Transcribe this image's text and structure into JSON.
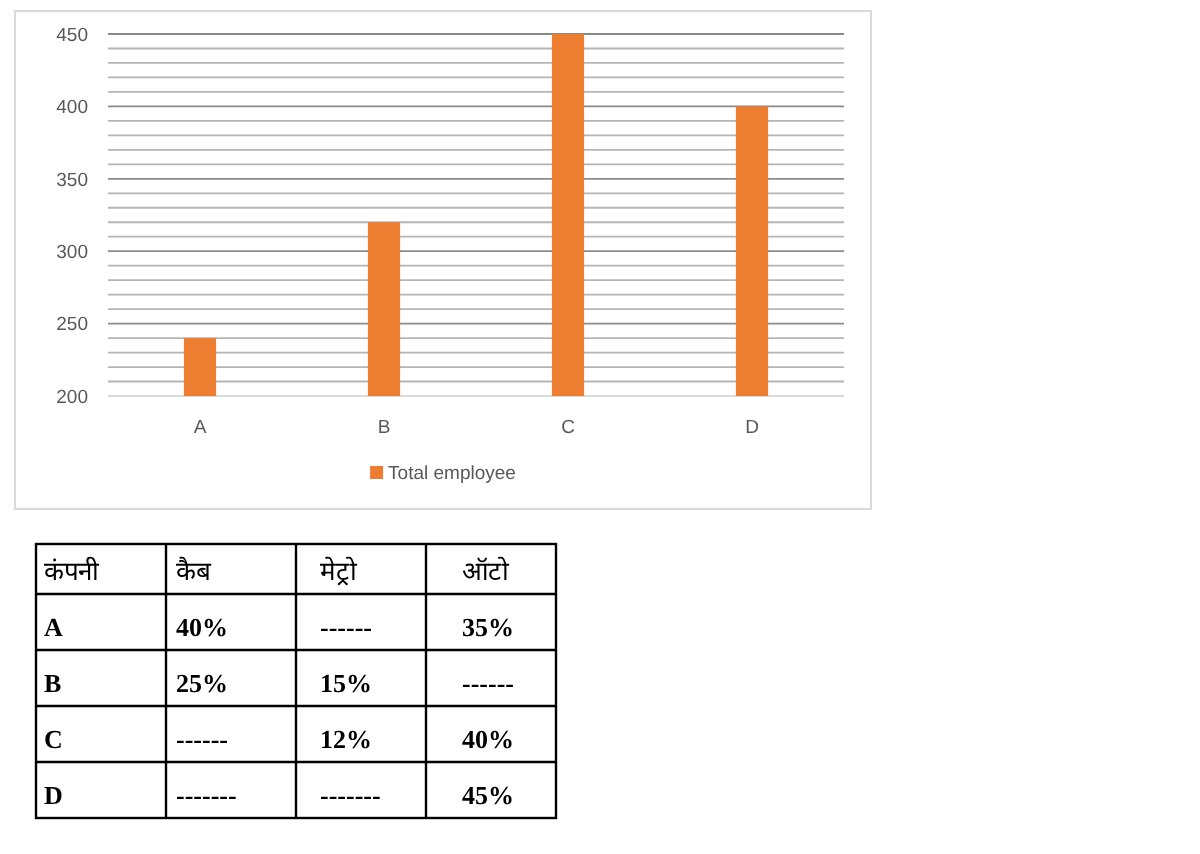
{
  "chart_data": [
    {
      "type": "bar",
      "categories": [
        "A",
        "B",
        "C",
        "D"
      ],
      "series": [
        {
          "name": "Total employee",
          "color": "#ed7d31",
          "values": [
            240,
            320,
            450,
            400
          ]
        }
      ],
      "ylim": [
        200,
        450
      ],
      "yticks": [
        200,
        {
          "value": 210,
          "label": null
        },
        {
          "value": 220,
          "label": null
        },
        {
          "value": 230,
          "label": null
        },
        {
          "value": 240,
          "label": null
        },
        250,
        {
          "value": 260,
          "label": null
        },
        {
          "value": 270,
          "label": null
        },
        {
          "value": 280,
          "label": null
        },
        {
          "value": 290,
          "label": null
        },
        300,
        {
          "value": 310,
          "label": null
        },
        {
          "value": 320,
          "label": null
        },
        {
          "value": 330,
          "label": null
        },
        {
          "value": 340,
          "label": null
        },
        350,
        {
          "value": 360,
          "label": null
        },
        {
          "value": 370,
          "label": null
        },
        {
          "value": 380,
          "label": null
        },
        {
          "value": 390,
          "label": null
        },
        400,
        {
          "value": 410,
          "label": null
        },
        {
          "value": 420,
          "label": null
        },
        {
          "value": 430,
          "label": null
        },
        {
          "value": 440,
          "label": null
        },
        450
      ],
      "grid": "y",
      "legend": "bottom"
    },
    {
      "type": "other",
      "ylabel": "कंपनी",
      "categories": [
        "कैब",
        "मेट्रो",
        "ऑटो"
      ],
      "y_categories": [
        "A",
        "B",
        "C",
        "D"
      ],
      "cell_labels": [
        [
          "40%",
          "------",
          "35%"
        ],
        [
          "25%",
          "15%",
          "------"
        ],
        [
          "------",
          "12%",
          "40%"
        ],
        [
          "-------",
          "-------",
          "45%"
        ]
      ]
    }
  ]
}
